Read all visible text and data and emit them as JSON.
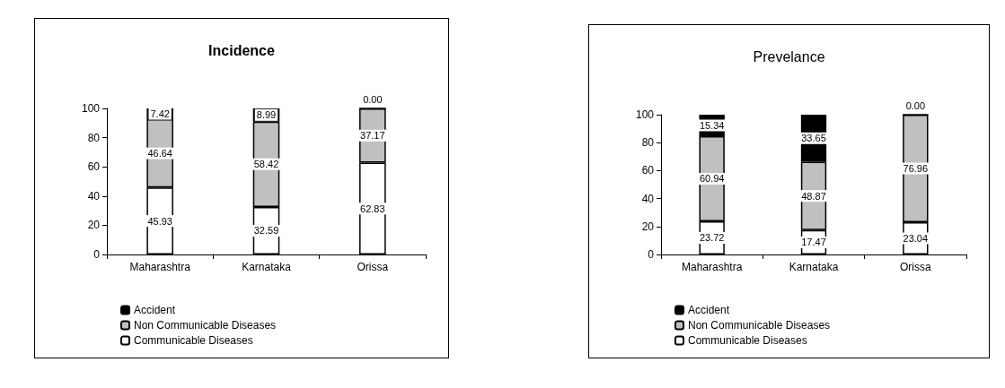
{
  "chart_data": [
    {
      "type": "bar",
      "title": "Incidence",
      "categories": [
        "Maharashtra",
        "Karnataka",
        "Orissa"
      ],
      "stacked": true,
      "ylim": [
        0,
        100
      ],
      "yticks": [
        0,
        20,
        40,
        60,
        80,
        100
      ],
      "grid": false,
      "legend": "bottom",
      "series": [
        {
          "name": "Communicable Diseases",
          "color": "#ffffff",
          "values": [
            45.93,
            32.59,
            62.83
          ],
          "value_labels": [
            "45.93",
            "32.59",
            "62.83"
          ]
        },
        {
          "name": "Non Communicable Diseases",
          "color": "#c0c0c0",
          "values": [
            46.64,
            58.42,
            37.17
          ],
          "value_labels": [
            "46.64",
            "58.42",
            "37.17"
          ]
        },
        {
          "name": "Accident",
          "color": "#000000",
          "values": [
            7.42,
            8.99,
            0.0
          ],
          "value_labels": [
            "7.42",
            "8.99",
            "0.00"
          ]
        }
      ]
    },
    {
      "type": "bar",
      "title": "Prevelance",
      "categories": [
        "Maharashtra",
        "Karnataka",
        "Orissa"
      ],
      "stacked": true,
      "ylim": [
        0,
        100
      ],
      "yticks": [
        0,
        20,
        40,
        60,
        80,
        100
      ],
      "grid": false,
      "legend": "bottom",
      "series": [
        {
          "name": "Communicable Diseases",
          "color": "#ffffff",
          "values": [
            23.72,
            17.47,
            23.04
          ],
          "value_labels": [
            "23.72",
            "17.47",
            "23.04"
          ]
        },
        {
          "name": "Non Communicable Diseases",
          "color": "#c0c0c0",
          "values": [
            60.94,
            48.87,
            76.96
          ],
          "value_labels": [
            "60.94",
            "48.87",
            "76.96"
          ]
        },
        {
          "name": "Accident",
          "color": "#000000",
          "values": [
            15.34,
            33.65,
            0.0
          ],
          "value_labels": [
            "15.34",
            "33.65",
            "0.00"
          ]
        }
      ]
    }
  ]
}
